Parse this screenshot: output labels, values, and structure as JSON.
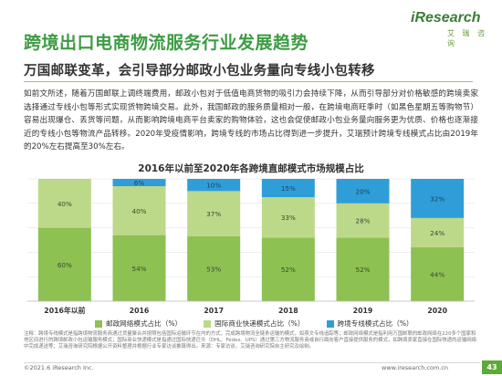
{
  "header": {
    "title": "跨境出口电商物流服务行业发展趋势",
    "logo_text": "iResearch",
    "logo_sub": "艾 瑞 咨 询"
  },
  "subtitle": "万国邮联变革，会引导部分邮政小包业务量向专线小包转移",
  "body_text": "如前文所述，随着万国邮联上调终端费用，邮政小包对于低值电商货物的吸引力会持续下降，从而引导部分对价格敏感的跨境卖家选择通过专线小包等形式实现货物跨境交易。此外，我国邮政的服务质量相对一般，在跨境电商旺季时（如黑色星期五等购物节）容易出现爆仓、丢货等问题，从而影响跨境电商平台卖家的购物体验，这也会促使邮政小包业务量向服务更为优质、价格也逐渐接近的专线小包等物流产品转移。2020年受疫情影响，跨境专线的市场占比得到进一步提升，艾瑞预计跨境专线模式占比由2019年的20%左右提高至30%左右。",
  "chart_data": {
    "type": "bar",
    "stacked": true,
    "title": "2016年以前至2020年各跨境直邮模式市场规模占比",
    "categories": [
      "2016年以前",
      "2016",
      "2017",
      "2018",
      "2019",
      "2020"
    ],
    "series": [
      {
        "name": "邮政网络模式占比（%）",
        "values": [
          60,
          54,
          53,
          52,
          52,
          44
        ],
        "labels": [
          "60%",
          "54%",
          "53%",
          "52%",
          "52%",
          "44%"
        ],
        "color": "#8dc152"
      },
      {
        "name": "国际商业快递模式占比（%）",
        "values": [
          40,
          40,
          37,
          33,
          28,
          24
        ],
        "labels": [
          "40%",
          "40%",
          "37%",
          "33%",
          "28%",
          "24%"
        ],
        "color": "#bcd98a"
      },
      {
        "name": "跨境专线模式占比（%）",
        "values": [
          0,
          6,
          10,
          15,
          20,
          32
        ],
        "labels": [
          "",
          "6%",
          "10%",
          "15%",
          "20%",
          "32%"
        ],
        "color": "#2f9ed8"
      }
    ],
    "ylim": [
      0,
      100
    ],
    "grid": true,
    "legend": "bottom"
  },
  "note": "注释：跨境专线模式是指跨境物流服务商通过货量聚合并按照包括国际运输环节在内的方式，完成跨境物流全链条运输的模式，如燕文专线追踪等；邮政网络模式是指利用万国邮联的邮政网络在220多个国家和地区间进行的跨境邮政小包运输服务模式；国际商业快递模式是指通过国际快递巨头（DHL、Fedex、UPS）通过第三方物流服务商或自行面向客户直接提供服务的模式，如跨境卖家直接在国际快递的运输网络中完成递送等；艾瑞咨询研究院根据公开资料整理并根据行业专家访谈推算得出。来源：专家访谈，艾瑞咨询研究院自主研究及绘制。",
  "footer": {
    "copyright": "©2021.6 iResearch Inc.",
    "website": "www.iresearch.com.cn",
    "page_number": "43"
  }
}
